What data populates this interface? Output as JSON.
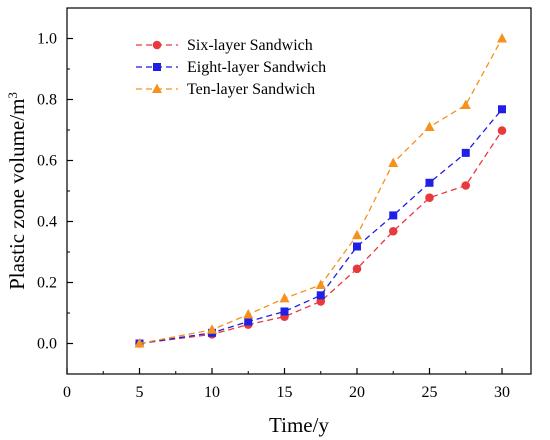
{
  "chart_data": {
    "type": "line",
    "xlabel": "Time/y",
    "ylabel_base": "Plastic zone volume/m",
    "ylabel_sup": "3",
    "xlim": [
      0,
      32
    ],
    "ylim": [
      -0.1,
      1.1
    ],
    "x_ticks": [
      0,
      5,
      10,
      15,
      20,
      25,
      30
    ],
    "y_ticks": [
      0.0,
      0.2,
      0.4,
      0.6,
      0.8,
      1.0
    ],
    "y_tick_labels": [
      "0.0",
      "0.2",
      "0.4",
      "0.6",
      "0.8",
      "1.0"
    ],
    "grid": false,
    "legend_position": "top-left",
    "x": [
      5,
      10,
      12.5,
      15,
      17.5,
      20,
      22.5,
      25,
      27.5,
      30
    ],
    "series": [
      {
        "name": "Six-layer Sandwich",
        "color": "#e8393d",
        "marker": "circle",
        "values": [
          0.0,
          0.03,
          0.062,
          0.088,
          0.138,
          0.245,
          0.368,
          0.478,
          0.518,
          0.698
        ]
      },
      {
        "name": "Eight-layer Sandwich",
        "color": "#1f1fe6",
        "marker": "square",
        "values": [
          0.0,
          0.035,
          0.072,
          0.105,
          0.158,
          0.318,
          0.42,
          0.527,
          0.625,
          0.768
        ]
      },
      {
        "name": "Ten-layer Sandwich",
        "color": "#f5921e",
        "marker": "triangle",
        "values": [
          0.0,
          0.045,
          0.095,
          0.148,
          0.192,
          0.355,
          0.592,
          0.71,
          0.782,
          1.0
        ]
      }
    ]
  }
}
